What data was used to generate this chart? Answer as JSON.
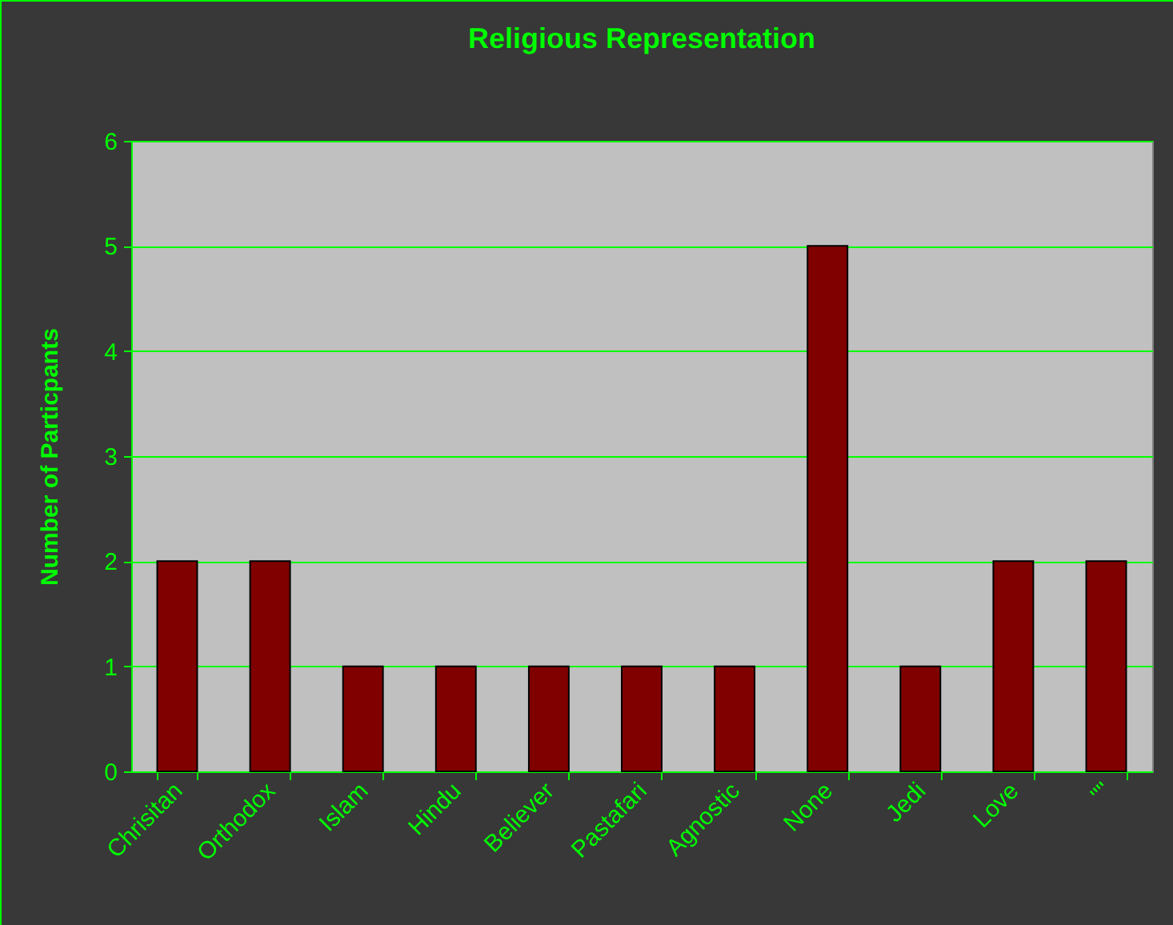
{
  "chart_data": {
    "type": "bar",
    "title": "Religious Representation",
    "ylabel": "Number of Particpants",
    "categories": [
      "Chrisitan",
      "Orthodox",
      "Islam",
      "Hindu",
      "Believer",
      "Pastafari",
      "Agnostic",
      "None",
      "Jedi",
      "Love",
      "\"\""
    ],
    "values": [
      2,
      2,
      1,
      1,
      1,
      1,
      1,
      5,
      1,
      2,
      2
    ],
    "color": "#800000",
    "ylim": [
      0,
      6
    ],
    "yticks": [
      0,
      1,
      2,
      3,
      4,
      5,
      6
    ],
    "grid": true
  }
}
